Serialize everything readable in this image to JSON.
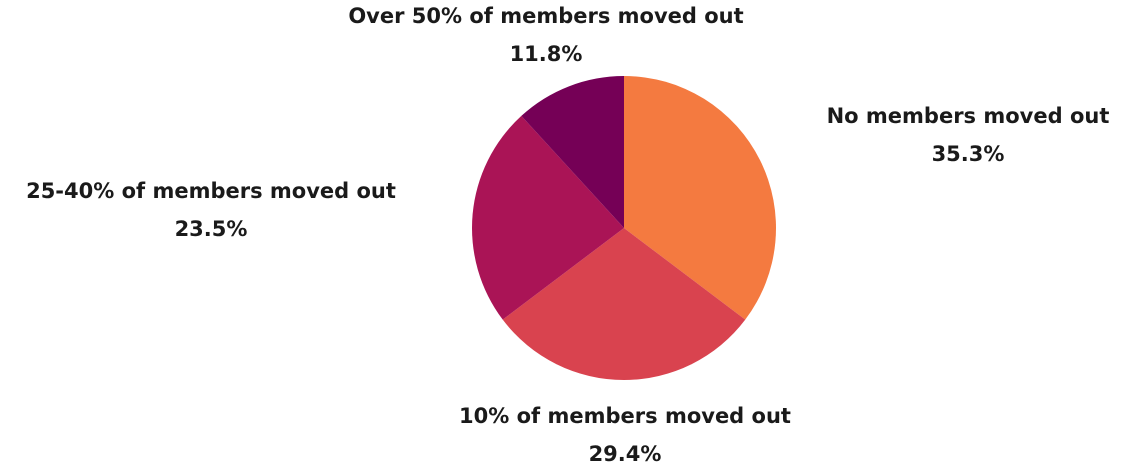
{
  "chart_data": {
    "type": "pie",
    "categories": [
      "No members moved out",
      "10% of members moved out",
      "25-40% of members moved out",
      "Over 50% of members moved out"
    ],
    "values": [
      35.3,
      29.4,
      23.5,
      11.8
    ],
    "value_labels": [
      "35.3%",
      "29.4%",
      "23.5%",
      "11.8%"
    ],
    "colors": [
      "#f47a40",
      "#d9434f",
      "#aa1456",
      "#750056"
    ]
  }
}
